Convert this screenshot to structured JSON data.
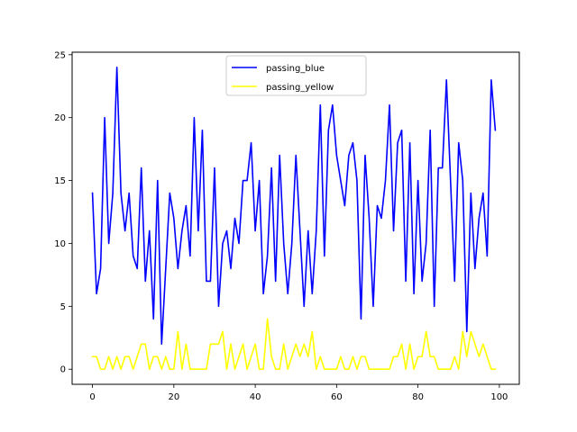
{
  "chart_data": {
    "type": "line",
    "title": "",
    "xlabel": "",
    "ylabel": "",
    "xlim": [
      -5,
      104.9
    ],
    "ylim": [
      -1.2,
      25.2
    ],
    "xticks": [
      0,
      20,
      40,
      60,
      80,
      100
    ],
    "yticks": [
      0,
      5,
      10,
      15,
      20,
      25
    ],
    "grid": false,
    "legend": "upper center",
    "series": [
      {
        "name": "passing_blue",
        "color": "#0000ff",
        "values": [
          14,
          6,
          8,
          20,
          10,
          14,
          24,
          14,
          11,
          14,
          9,
          8,
          16,
          7,
          11,
          4,
          15,
          2,
          8,
          14,
          12,
          8,
          11,
          13,
          9,
          20,
          11,
          19,
          7,
          7,
          16,
          5,
          10,
          11,
          8,
          12,
          10,
          15,
          15,
          18,
          11,
          15,
          6,
          9,
          16,
          7,
          17,
          10,
          6,
          10,
          17,
          11,
          5,
          11,
          6,
          11,
          21,
          9,
          19,
          21,
          17,
          15,
          13,
          17,
          18,
          15,
          4,
          17,
          12,
          5,
          13,
          12,
          15,
          21,
          11,
          18,
          19,
          7,
          18,
          6,
          15,
          7,
          10,
          19,
          5,
          16,
          16,
          23,
          15,
          7,
          18,
          15,
          3,
          14,
          8,
          12,
          14,
          9,
          23,
          19
        ]
      },
      {
        "name": "passing_yellow",
        "color": "#ffff00",
        "values": [
          1,
          1,
          0,
          0,
          1,
          0,
          1,
          0,
          1,
          1,
          0,
          1,
          2,
          2,
          0,
          1,
          1,
          0,
          1,
          0,
          0,
          3,
          0,
          2,
          0,
          0,
          0,
          0,
          0,
          2,
          2,
          2,
          3,
          0,
          2,
          0,
          1,
          2,
          0,
          1,
          2,
          0,
          0,
          4,
          1,
          0,
          0,
          2,
          0,
          1,
          2,
          1,
          2,
          1,
          3,
          0,
          1,
          0,
          0,
          0,
          0,
          1,
          0,
          0,
          1,
          0,
          1,
          1,
          0,
          0,
          0,
          0,
          0,
          0,
          1,
          1,
          2,
          0,
          2,
          0,
          1,
          1,
          3,
          1,
          1,
          0,
          0,
          0,
          0,
          1,
          0,
          3,
          1,
          3,
          2,
          1,
          2,
          1,
          0,
          0
        ]
      }
    ]
  }
}
